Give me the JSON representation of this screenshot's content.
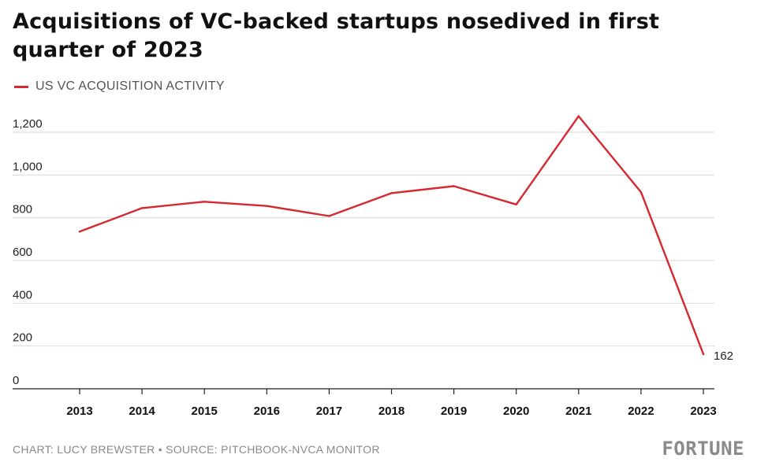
{
  "chart_data": {
    "type": "line",
    "title": "Acquisitions of VC-backed startups nosedived in first quarter of 2023",
    "xlabel": "",
    "ylabel": "",
    "categories": [
      "2013",
      "2014",
      "2015",
      "2016",
      "2017",
      "2018",
      "2019",
      "2020",
      "2021",
      "2022",
      "2023"
    ],
    "series": [
      {
        "name": "US VC ACQUISITION ACTIVITY",
        "values": [
          735,
          845,
          875,
          855,
          808,
          915,
          948,
          862,
          1275,
          920,
          162
        ],
        "color": "#d7282f"
      }
    ],
    "ylim": [
      0,
      1200
    ],
    "yticks": [
      0,
      200,
      400,
      600,
      800,
      1000,
      1200
    ],
    "ytick_labels": [
      "0",
      "200",
      "400",
      "600",
      "800",
      "1,000",
      "1,200"
    ],
    "annotations": [
      {
        "category": "2023",
        "text": "162"
      }
    ],
    "grid": true,
    "legend_position": "top-left"
  },
  "footer": {
    "credit": "CHART: LUCY BREWSTER • SOURCE: PITCHBOOK-NVCA MONITOR"
  },
  "logo": {
    "text": "FORTUNE"
  },
  "colors": {
    "gridline": "#d9d9d9",
    "axis": "#222222"
  }
}
